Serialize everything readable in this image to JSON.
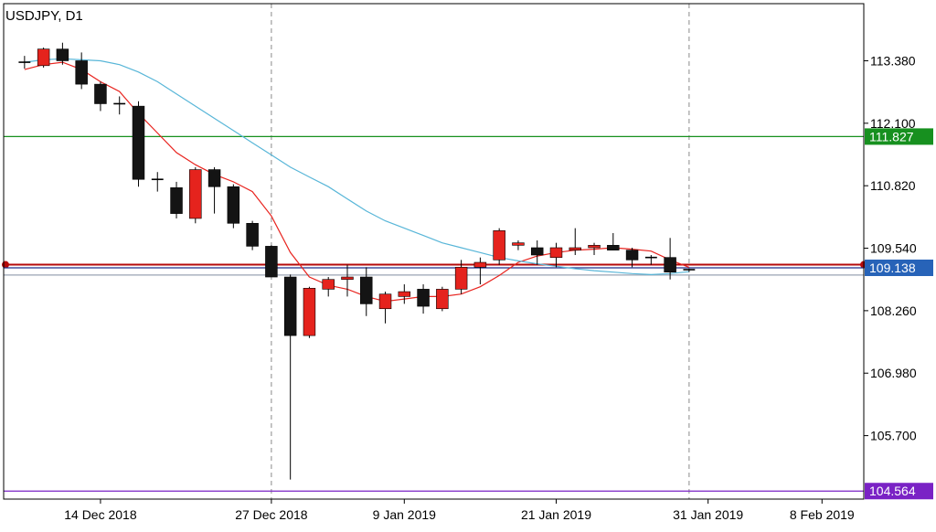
{
  "chart_data": {
    "type": "candlestick",
    "title": "USDJPY, D1",
    "ylim": [
      104.4,
      114.55
    ],
    "xlim": [
      -1.1,
      44.2
    ],
    "y_ticks": [
      "113.380",
      "112.100",
      "110.820",
      "109.540",
      "108.260",
      "106.980",
      "105.700"
    ],
    "x_ticks": [
      {
        "label": "14 Dec 2018",
        "x": 4
      },
      {
        "label": "27 Dec 2018",
        "x": 13
      },
      {
        "label": "9 Jan 2019",
        "x": 20
      },
      {
        "label": "21 Jan 2019",
        "x": 28
      },
      {
        "label": "31 Jan 2019",
        "x": 36
      },
      {
        "label": "8 Feb 2019",
        "x": 42
      }
    ],
    "period_separators": [
      13,
      35
    ],
    "candles": [
      {
        "o": 113.35,
        "h": 113.48,
        "l": 113.22,
        "c": 113.35
      },
      {
        "o": 113.28,
        "h": 113.65,
        "l": 113.24,
        "c": 113.62
      },
      {
        "o": 113.62,
        "h": 113.75,
        "l": 113.3,
        "c": 113.38
      },
      {
        "o": 113.38,
        "h": 113.55,
        "l": 112.8,
        "c": 112.9
      },
      {
        "o": 112.9,
        "h": 112.95,
        "l": 112.35,
        "c": 112.5
      },
      {
        "o": 112.5,
        "h": 112.65,
        "l": 112.28,
        "c": 112.48
      },
      {
        "o": 112.45,
        "h": 112.55,
        "l": 110.8,
        "c": 110.95
      },
      {
        "o": 110.95,
        "h": 111.1,
        "l": 110.7,
        "c": 110.95
      },
      {
        "o": 110.78,
        "h": 110.9,
        "l": 110.15,
        "c": 110.25
      },
      {
        "o": 110.15,
        "h": 111.2,
        "l": 110.05,
        "c": 111.15
      },
      {
        "o": 111.15,
        "h": 111.2,
        "l": 110.25,
        "c": 110.8
      },
      {
        "o": 110.8,
        "h": 110.85,
        "l": 109.95,
        "c": 110.05
      },
      {
        "o": 110.05,
        "h": 110.1,
        "l": 109.5,
        "c": 109.58
      },
      {
        "o": 109.58,
        "h": 109.6,
        "l": 108.95,
        "c": 108.95
      },
      {
        "o": 108.95,
        "h": 109.0,
        "l": 104.8,
        "c": 107.75
      },
      {
        "o": 107.75,
        "h": 108.75,
        "l": 107.7,
        "c": 108.72
      },
      {
        "o": 108.7,
        "h": 108.95,
        "l": 108.55,
        "c": 108.9
      },
      {
        "o": 108.9,
        "h": 109.2,
        "l": 108.55,
        "c": 108.95
      },
      {
        "o": 108.95,
        "h": 109.15,
        "l": 108.15,
        "c": 108.4
      },
      {
        "o": 108.3,
        "h": 108.65,
        "l": 108.0,
        "c": 108.6
      },
      {
        "o": 108.55,
        "h": 108.8,
        "l": 108.4,
        "c": 108.65
      },
      {
        "o": 108.7,
        "h": 108.8,
        "l": 108.2,
        "c": 108.35
      },
      {
        "o": 108.3,
        "h": 108.75,
        "l": 108.25,
        "c": 108.7
      },
      {
        "o": 108.7,
        "h": 109.3,
        "l": 108.6,
        "c": 109.15
      },
      {
        "o": 109.15,
        "h": 109.35,
        "l": 108.8,
        "c": 109.25
      },
      {
        "o": 109.3,
        "h": 109.95,
        "l": 109.2,
        "c": 109.9
      },
      {
        "o": 109.6,
        "h": 109.7,
        "l": 109.5,
        "c": 109.65
      },
      {
        "o": 109.55,
        "h": 109.7,
        "l": 109.2,
        "c": 109.4
      },
      {
        "o": 109.35,
        "h": 109.65,
        "l": 109.15,
        "c": 109.55
      },
      {
        "o": 109.5,
        "h": 109.95,
        "l": 109.4,
        "c": 109.55
      },
      {
        "o": 109.55,
        "h": 109.65,
        "l": 109.4,
        "c": 109.6
      },
      {
        "o": 109.6,
        "h": 109.85,
        "l": 109.5,
        "c": 109.5
      },
      {
        "o": 109.5,
        "h": 109.55,
        "l": 109.15,
        "c": 109.3
      },
      {
        "o": 109.35,
        "h": 109.4,
        "l": 109.2,
        "c": 109.35
      },
      {
        "o": 109.35,
        "h": 109.75,
        "l": 108.9,
        "c": 109.05
      },
      {
        "o": 109.08,
        "h": 109.12,
        "l": 109.05,
        "c": 109.1
      }
    ],
    "moving_averages": [
      {
        "color": "#e8231e",
        "values": [
          113.2,
          113.3,
          113.35,
          113.2,
          112.95,
          112.75,
          112.3,
          111.9,
          111.5,
          111.25,
          111.05,
          110.9,
          110.7,
          110.2,
          109.45,
          108.95,
          108.78,
          108.7,
          108.55,
          108.45,
          108.5,
          108.55,
          108.55,
          108.6,
          108.75,
          108.98,
          109.25,
          109.38,
          109.45,
          109.5,
          109.52,
          109.55,
          109.52,
          109.48,
          109.3,
          109.15
        ]
      },
      {
        "color": "#58b6d8",
        "values": [
          113.35,
          113.4,
          113.42,
          113.4,
          113.38,
          113.3,
          113.15,
          112.95,
          112.7,
          112.45,
          112.2,
          111.95,
          111.7,
          111.45,
          111.2,
          111.0,
          110.8,
          110.55,
          110.3,
          110.1,
          109.95,
          109.8,
          109.65,
          109.55,
          109.45,
          109.35,
          109.28,
          109.22,
          109.17,
          109.12,
          109.08,
          109.05,
          109.02,
          109.0,
          109.02,
          109.06
        ]
      }
    ],
    "horizontal_lines": [
      {
        "price": 111.827,
        "color": "#17901f",
        "label": "111.827",
        "label_bg": "#17901f"
      },
      {
        "price": 109.203,
        "color": "#b50a0a",
        "label": "",
        "label_bg": "",
        "endpoint_dots": true
      },
      {
        "price": 109.138,
        "color": "#1f2d8a",
        "label": "109.138",
        "label_bg": "#2763b8"
      },
      {
        "price": 108.99,
        "color": "#9aa4b4",
        "label": "",
        "label_bg": ""
      },
      {
        "price": 104.564,
        "color": "#7a22c5",
        "label": "104.564",
        "label_bg": "#7a22c5"
      }
    ],
    "bull_color": "#e5231d",
    "bear_color": "#141414",
    "grid": false,
    "legend": "none"
  }
}
